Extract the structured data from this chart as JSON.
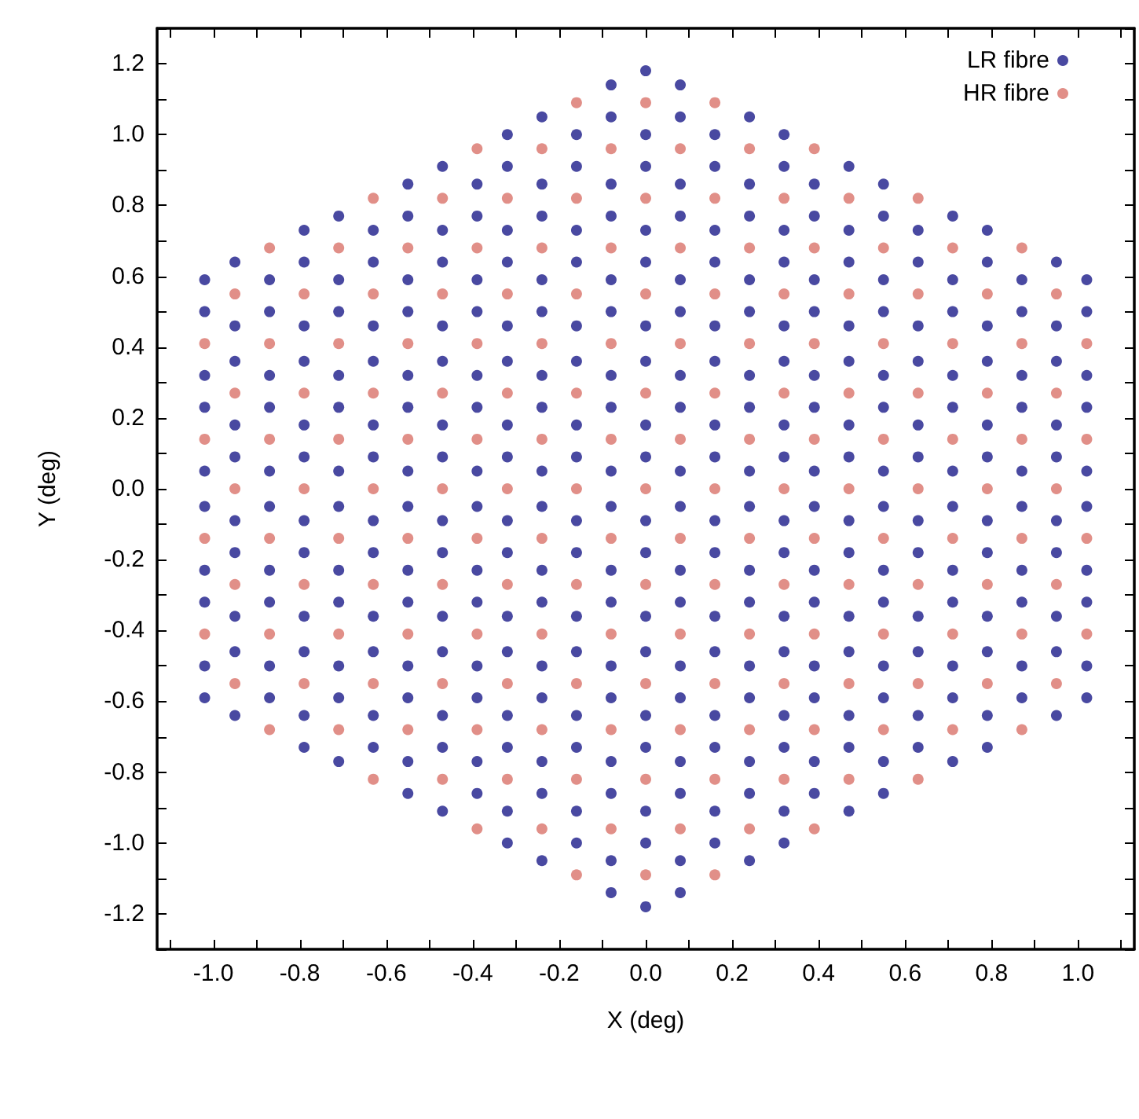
{
  "chart_data": {
    "type": "scatter",
    "xlabel": "X (deg)",
    "ylabel": "Y (deg)",
    "xlim": [
      -1.13,
      1.13
    ],
    "ylim": [
      -1.3,
      1.3
    ],
    "xticks": [
      {
        "value": -1.1,
        "label": null
      },
      {
        "value": -1.0,
        "label": "-1.0"
      },
      {
        "value": -0.9,
        "label": null
      },
      {
        "value": -0.8,
        "label": "-0.8"
      },
      {
        "value": -0.7,
        "label": null
      },
      {
        "value": -0.6,
        "label": "-0.6"
      },
      {
        "value": -0.5,
        "label": null
      },
      {
        "value": -0.4,
        "label": "-0.4"
      },
      {
        "value": -0.3,
        "label": null
      },
      {
        "value": -0.2,
        "label": "-0.2"
      },
      {
        "value": -0.1,
        "label": null
      },
      {
        "value": 0,
        "label": "0.0"
      },
      {
        "value": 0.1,
        "label": null
      },
      {
        "value": 0.2,
        "label": "0.2"
      },
      {
        "value": 0.3,
        "label": null
      },
      {
        "value": 0.4,
        "label": "0.4"
      },
      {
        "value": 0.5,
        "label": null
      },
      {
        "value": 0.6,
        "label": "0.6"
      },
      {
        "value": 0.7,
        "label": null
      },
      {
        "value": 0.8,
        "label": "0.8"
      },
      {
        "value": 0.9,
        "label": null
      },
      {
        "value": 1.0,
        "label": "1.0"
      },
      {
        "value": 1.1,
        "label": null
      }
    ],
    "yticks": [
      {
        "value": -1.3,
        "label": null
      },
      {
        "value": -1.2,
        "label": "-1.2"
      },
      {
        "value": -1.1,
        "label": null
      },
      {
        "value": -1.0,
        "label": "-1.0"
      },
      {
        "value": -0.9,
        "label": null
      },
      {
        "value": -0.8,
        "label": "-0.8"
      },
      {
        "value": -0.7,
        "label": null
      },
      {
        "value": -0.6,
        "label": "-0.6"
      },
      {
        "value": -0.5,
        "label": null
      },
      {
        "value": -0.4,
        "label": "-0.4"
      },
      {
        "value": -0.3,
        "label": null
      },
      {
        "value": -0.2,
        "label": "-0.2"
      },
      {
        "value": -0.1,
        "label": null
      },
      {
        "value": 0,
        "label": "0.0"
      },
      {
        "value": 0.1,
        "label": null
      },
      {
        "value": 0.2,
        "label": "0.2"
      },
      {
        "value": 0.3,
        "label": null
      },
      {
        "value": 0.4,
        "label": "0.4"
      },
      {
        "value": 0.5,
        "label": null
      },
      {
        "value": 0.6,
        "label": "0.6"
      },
      {
        "value": 0.7,
        "label": null
      },
      {
        "value": 0.8,
        "label": "0.8"
      },
      {
        "value": 0.9,
        "label": null
      },
      {
        "value": 1.0,
        "label": "1.0"
      },
      {
        "value": 1.1,
        "label": null
      },
      {
        "value": 1.2,
        "label": "1.2"
      },
      {
        "value": 1.3,
        "label": null
      }
    ],
    "grid": false,
    "legend": "top right",
    "marker": "circle",
    "series": [
      {
        "name": "LR fibre",
        "color": "#1c1c8a",
        "x": [
          -1.02,
          -1.02,
          -1.02,
          -1.02,
          -1.02,
          -1.02,
          -1.02,
          -1.02,
          -1.02,
          -1.02,
          -0.95,
          -0.95,
          -0.95,
          -0.95,
          -0.95,
          -0.95,
          -0.95,
          -0.95,
          -0.95,
          -0.95,
          -0.87,
          -0.87,
          -0.87,
          -0.87,
          -0.87,
          -0.87,
          -0.87,
          -0.87,
          -0.87,
          -0.87,
          -0.79,
          -0.79,
          -0.79,
          -0.79,
          -0.79,
          -0.79,
          -0.79,
          -0.79,
          -0.79,
          -0.79,
          -0.79,
          -0.79,
          -0.71,
          -0.71,
          -0.71,
          -0.71,
          -0.71,
          -0.71,
          -0.71,
          -0.71,
          -0.71,
          -0.71,
          -0.71,
          -0.71,
          -0.63,
          -0.63,
          -0.63,
          -0.63,
          -0.63,
          -0.63,
          -0.63,
          -0.63,
          -0.63,
          -0.63,
          -0.63,
          -0.63,
          -0.55,
          -0.55,
          -0.55,
          -0.55,
          -0.55,
          -0.55,
          -0.55,
          -0.55,
          -0.55,
          -0.55,
          -0.55,
          -0.55,
          -0.55,
          -0.55,
          -0.47,
          -0.47,
          -0.47,
          -0.47,
          -0.47,
          -0.47,
          -0.47,
          -0.47,
          -0.47,
          -0.47,
          -0.47,
          -0.47,
          -0.47,
          -0.47,
          -0.39,
          -0.39,
          -0.39,
          -0.39,
          -0.39,
          -0.39,
          -0.39,
          -0.39,
          -0.39,
          -0.39,
          -0.39,
          -0.39,
          -0.39,
          -0.39,
          -0.32,
          -0.32,
          -0.32,
          -0.32,
          -0.32,
          -0.32,
          -0.32,
          -0.32,
          -0.32,
          -0.32,
          -0.32,
          -0.32,
          -0.32,
          -0.32,
          -0.32,
          -0.32,
          -0.24,
          -0.24,
          -0.24,
          -0.24,
          -0.24,
          -0.24,
          -0.24,
          -0.24,
          -0.24,
          -0.24,
          -0.24,
          -0.24,
          -0.24,
          -0.24,
          -0.24,
          -0.24,
          -0.16,
          -0.16,
          -0.16,
          -0.16,
          -0.16,
          -0.16,
          -0.16,
          -0.16,
          -0.16,
          -0.16,
          -0.16,
          -0.16,
          -0.16,
          -0.16,
          -0.16,
          -0.16,
          -0.08,
          -0.08,
          -0.08,
          -0.08,
          -0.08,
          -0.08,
          -0.08,
          -0.08,
          -0.08,
          -0.08,
          -0.08,
          -0.08,
          -0.08,
          -0.08,
          -0.08,
          -0.08,
          -0.08,
          -0.08,
          0,
          0,
          0,
          0,
          0,
          0,
          0,
          0,
          0,
          0,
          0,
          0,
          0,
          0,
          0,
          0,
          0,
          0,
          0.08,
          0.08,
          0.08,
          0.08,
          0.08,
          0.08,
          0.08,
          0.08,
          0.08,
          0.08,
          0.08,
          0.08,
          0.08,
          0.08,
          0.08,
          0.08,
          0.08,
          0.08,
          0.16,
          0.16,
          0.16,
          0.16,
          0.16,
          0.16,
          0.16,
          0.16,
          0.16,
          0.16,
          0.16,
          0.16,
          0.16,
          0.16,
          0.16,
          0.16,
          0.24,
          0.24,
          0.24,
          0.24,
          0.24,
          0.24,
          0.24,
          0.24,
          0.24,
          0.24,
          0.24,
          0.24,
          0.24,
          0.24,
          0.24,
          0.24,
          0.32,
          0.32,
          0.32,
          0.32,
          0.32,
          0.32,
          0.32,
          0.32,
          0.32,
          0.32,
          0.32,
          0.32,
          0.32,
          0.32,
          0.32,
          0.32,
          0.39,
          0.39,
          0.39,
          0.39,
          0.39,
          0.39,
          0.39,
          0.39,
          0.39,
          0.39,
          0.39,
          0.39,
          0.39,
          0.39,
          0.47,
          0.47,
          0.47,
          0.47,
          0.47,
          0.47,
          0.47,
          0.47,
          0.47,
          0.47,
          0.47,
          0.47,
          0.47,
          0.47,
          0.55,
          0.55,
          0.55,
          0.55,
          0.55,
          0.55,
          0.55,
          0.55,
          0.55,
          0.55,
          0.55,
          0.55,
          0.55,
          0.55,
          0.63,
          0.63,
          0.63,
          0.63,
          0.63,
          0.63,
          0.63,
          0.63,
          0.63,
          0.63,
          0.63,
          0.63,
          0.71,
          0.71,
          0.71,
          0.71,
          0.71,
          0.71,
          0.71,
          0.71,
          0.71,
          0.71,
          0.71,
          0.71,
          0.79,
          0.79,
          0.79,
          0.79,
          0.79,
          0.79,
          0.79,
          0.79,
          0.79,
          0.79,
          0.79,
          0.79,
          0.87,
          0.87,
          0.87,
          0.87,
          0.87,
          0.87,
          0.87,
          0.87,
          0.87,
          0.87,
          0.95,
          0.95,
          0.95,
          0.95,
          0.95,
          0.95,
          0.95,
          0.95,
          0.95,
          0.95,
          1.02,
          1.02,
          1.02,
          1.02,
          1.02,
          1.02,
          1.02,
          1.02,
          1.02,
          1.02
        ],
        "values": [
          -0.59,
          -0.5,
          -0.32,
          -0.23,
          -0.05,
          0.05,
          0.23,
          0.32,
          0.5,
          0.59,
          -0.64,
          -0.46,
          -0.36,
          -0.18,
          -0.09,
          0.09,
          0.18,
          0.36,
          0.46,
          0.64,
          -0.59,
          -0.5,
          -0.32,
          -0.23,
          -0.05,
          0.05,
          0.23,
          0.32,
          0.5,
          0.59,
          -0.73,
          -0.64,
          -0.46,
          -0.36,
          -0.18,
          -0.09,
          0.09,
          0.18,
          0.36,
          0.46,
          0.64,
          0.73,
          -0.77,
          -0.59,
          -0.5,
          -0.32,
          -0.23,
          -0.05,
          0.05,
          0.23,
          0.32,
          0.5,
          0.59,
          0.77,
          -0.73,
          -0.64,
          -0.46,
          -0.36,
          -0.18,
          -0.09,
          0.09,
          0.18,
          0.36,
          0.46,
          0.64,
          0.73,
          -0.86,
          -0.77,
          -0.59,
          -0.5,
          -0.32,
          -0.23,
          -0.05,
          0.05,
          0.23,
          0.32,
          0.5,
          0.59,
          0.77,
          0.86,
          -0.91,
          -0.73,
          -0.64,
          -0.46,
          -0.36,
          -0.18,
          -0.09,
          0.09,
          0.18,
          0.36,
          0.46,
          0.64,
          0.73,
          0.91,
          -0.86,
          -0.77,
          -0.59,
          -0.5,
          -0.32,
          -0.23,
          -0.05,
          0.05,
          0.23,
          0.32,
          0.5,
          0.59,
          0.77,
          0.86,
          -1.0,
          -0.91,
          -0.73,
          -0.64,
          -0.46,
          -0.36,
          -0.18,
          -0.09,
          0.09,
          0.18,
          0.36,
          0.46,
          0.64,
          0.73,
          0.91,
          1.0,
          -1.05,
          -0.86,
          -0.77,
          -0.59,
          -0.5,
          -0.32,
          -0.23,
          -0.05,
          0.05,
          0.23,
          0.32,
          0.5,
          0.59,
          0.77,
          0.86,
          1.05,
          -1.0,
          -0.91,
          -0.73,
          -0.64,
          -0.46,
          -0.36,
          -0.18,
          -0.09,
          0.09,
          0.18,
          0.36,
          0.46,
          0.64,
          0.73,
          0.91,
          1.0,
          -1.14,
          -1.05,
          -0.86,
          -0.77,
          -0.59,
          -0.5,
          -0.32,
          -0.23,
          -0.05,
          0.05,
          0.23,
          0.32,
          0.5,
          0.59,
          0.77,
          0.86,
          1.05,
          1.14,
          -1.18,
          -1.0,
          -0.91,
          -0.73,
          -0.64,
          -0.46,
          -0.36,
          -0.18,
          -0.09,
          0.09,
          0.18,
          0.36,
          0.46,
          0.64,
          0.73,
          0.91,
          1.0,
          1.18,
          -1.14,
          -1.05,
          -0.86,
          -0.77,
          -0.59,
          -0.5,
          -0.32,
          -0.23,
          -0.05,
          0.05,
          0.23,
          0.32,
          0.5,
          0.59,
          0.77,
          0.86,
          1.05,
          1.14,
          -1.0,
          -0.91,
          -0.73,
          -0.64,
          -0.46,
          -0.36,
          -0.18,
          -0.09,
          0.09,
          0.18,
          0.36,
          0.46,
          0.64,
          0.73,
          0.91,
          1.0,
          -1.05,
          -0.86,
          -0.77,
          -0.59,
          -0.5,
          -0.32,
          -0.23,
          -0.05,
          0.05,
          0.23,
          0.32,
          0.5,
          0.59,
          0.77,
          0.86,
          1.05,
          -1.0,
          -0.91,
          -0.73,
          -0.64,
          -0.46,
          -0.36,
          -0.18,
          -0.09,
          0.09,
          0.18,
          0.36,
          0.46,
          0.64,
          0.73,
          0.91,
          1.0,
          -0.86,
          -0.77,
          -0.59,
          -0.5,
          -0.32,
          -0.23,
          -0.05,
          0.05,
          0.23,
          0.32,
          0.5,
          0.59,
          0.77,
          0.86,
          -0.91,
          -0.73,
          -0.64,
          -0.46,
          -0.36,
          -0.18,
          -0.09,
          0.09,
          0.18,
          0.36,
          0.46,
          0.64,
          0.73,
          0.91,
          -0.86,
          -0.77,
          -0.59,
          -0.5,
          -0.32,
          -0.23,
          -0.05,
          0.05,
          0.23,
          0.32,
          0.5,
          0.59,
          0.77,
          0.86,
          -0.73,
          -0.64,
          -0.46,
          -0.36,
          -0.18,
          -0.09,
          0.09,
          0.18,
          0.36,
          0.46,
          0.64,
          0.73,
          -0.77,
          -0.59,
          -0.5,
          -0.32,
          -0.23,
          -0.05,
          0.05,
          0.23,
          0.32,
          0.5,
          0.59,
          0.77,
          -0.73,
          -0.64,
          -0.46,
          -0.36,
          -0.18,
          -0.09,
          0.09,
          0.18,
          0.36,
          0.46,
          0.64,
          0.73,
          -0.59,
          -0.5,
          -0.32,
          -0.23,
          -0.05,
          0.05,
          0.23,
          0.32,
          0.5,
          0.59,
          -0.64,
          -0.46,
          -0.36,
          -0.18,
          -0.09,
          0.09,
          0.18,
          0.36,
          0.46,
          0.64,
          -0.59,
          -0.5,
          -0.32,
          -0.23,
          -0.05,
          0.05,
          0.23,
          0.32,
          0.5,
          0.59
        ]
      },
      {
        "name": "HR fibre",
        "color": "#d9736a",
        "x": [
          -1.02,
          -1.02,
          -1.02,
          -1.02,
          -0.95,
          -0.95,
          -0.95,
          -0.95,
          -0.95,
          -0.87,
          -0.87,
          -0.87,
          -0.87,
          -0.87,
          -0.87,
          -0.79,
          -0.79,
          -0.79,
          -0.79,
          -0.79,
          -0.71,
          -0.71,
          -0.71,
          -0.71,
          -0.71,
          -0.71,
          -0.63,
          -0.63,
          -0.63,
          -0.63,
          -0.63,
          -0.63,
          -0.63,
          -0.55,
          -0.55,
          -0.55,
          -0.55,
          -0.55,
          -0.55,
          -0.47,
          -0.47,
          -0.47,
          -0.47,
          -0.47,
          -0.47,
          -0.47,
          -0.39,
          -0.39,
          -0.39,
          -0.39,
          -0.39,
          -0.39,
          -0.39,
          -0.39,
          -0.32,
          -0.32,
          -0.32,
          -0.32,
          -0.32,
          -0.32,
          -0.32,
          -0.24,
          -0.24,
          -0.24,
          -0.24,
          -0.24,
          -0.24,
          -0.24,
          -0.24,
          -0.16,
          -0.16,
          -0.16,
          -0.16,
          -0.16,
          -0.16,
          -0.16,
          -0.16,
          -0.16,
          -0.08,
          -0.08,
          -0.08,
          -0.08,
          -0.08,
          -0.08,
          -0.08,
          -0.08,
          0,
          0,
          0,
          0,
          0,
          0,
          0,
          0,
          0,
          0.08,
          0.08,
          0.08,
          0.08,
          0.08,
          0.08,
          0.08,
          0.08,
          0.16,
          0.16,
          0.16,
          0.16,
          0.16,
          0.16,
          0.16,
          0.16,
          0.16,
          0.24,
          0.24,
          0.24,
          0.24,
          0.24,
          0.24,
          0.24,
          0.24,
          0.32,
          0.32,
          0.32,
          0.32,
          0.32,
          0.32,
          0.32,
          0.39,
          0.39,
          0.39,
          0.39,
          0.39,
          0.39,
          0.39,
          0.39,
          0.47,
          0.47,
          0.47,
          0.47,
          0.47,
          0.47,
          0.47,
          0.55,
          0.55,
          0.55,
          0.55,
          0.55,
          0.55,
          0.63,
          0.63,
          0.63,
          0.63,
          0.63,
          0.63,
          0.63,
          0.71,
          0.71,
          0.71,
          0.71,
          0.71,
          0.71,
          0.79,
          0.79,
          0.79,
          0.79,
          0.79,
          0.87,
          0.87,
          0.87,
          0.87,
          0.87,
          0.87,
          0.95,
          0.95,
          0.95,
          0.95,
          0.95,
          1.02,
          1.02,
          1.02,
          1.02
        ],
        "values": [
          -0.41,
          -0.14,
          0.14,
          0.41,
          -0.55,
          -0.27,
          0,
          0.27,
          0.55,
          -0.68,
          -0.41,
          -0.14,
          0.14,
          0.41,
          0.68,
          -0.55,
          -0.27,
          0,
          0.27,
          0.55,
          -0.68,
          -0.41,
          -0.14,
          0.14,
          0.41,
          0.68,
          -0.82,
          -0.55,
          -0.27,
          0,
          0.27,
          0.55,
          0.82,
          -0.68,
          -0.41,
          -0.14,
          0.14,
          0.41,
          0.68,
          -0.82,
          -0.55,
          -0.27,
          0,
          0.27,
          0.55,
          0.82,
          -0.96,
          -0.68,
          -0.41,
          -0.14,
          0.14,
          0.41,
          0.68,
          0.96,
          -0.82,
          -0.55,
          -0.27,
          0,
          0.27,
          0.55,
          0.82,
          -0.96,
          -0.68,
          -0.41,
          -0.14,
          0.14,
          0.41,
          0.68,
          0.96,
          -1.09,
          -0.82,
          -0.55,
          -0.27,
          0,
          0.27,
          0.55,
          0.82,
          1.09,
          -0.96,
          -0.68,
          -0.41,
          -0.14,
          0.14,
          0.41,
          0.68,
          0.96,
          -1.09,
          -0.82,
          -0.55,
          -0.27,
          0,
          0.27,
          0.55,
          0.82,
          1.09,
          -0.96,
          -0.68,
          -0.41,
          -0.14,
          0.14,
          0.41,
          0.68,
          0.96,
          -1.09,
          -0.82,
          -0.55,
          -0.27,
          0,
          0.27,
          0.55,
          0.82,
          1.09,
          -0.96,
          -0.68,
          -0.41,
          -0.14,
          0.14,
          0.41,
          0.68,
          0.96,
          -0.82,
          -0.55,
          -0.27,
          0,
          0.27,
          0.55,
          0.82,
          -0.96,
          -0.68,
          -0.41,
          -0.14,
          0.14,
          0.41,
          0.68,
          0.96,
          -0.82,
          -0.55,
          -0.27,
          0,
          0.27,
          0.55,
          0.82,
          -0.68,
          -0.41,
          -0.14,
          0.14,
          0.41,
          0.68,
          -0.82,
          -0.55,
          -0.27,
          0,
          0.27,
          0.55,
          0.82,
          -0.68,
          -0.41,
          -0.14,
          0.14,
          0.41,
          0.68,
          -0.55,
          -0.27,
          0,
          0.27,
          0.55,
          -0.68,
          -0.41,
          -0.14,
          0.14,
          0.41,
          0.68,
          -0.55,
          -0.27,
          0,
          0.27,
          0.55,
          -0.41,
          -0.14,
          0.14,
          0.41
        ]
      }
    ]
  }
}
